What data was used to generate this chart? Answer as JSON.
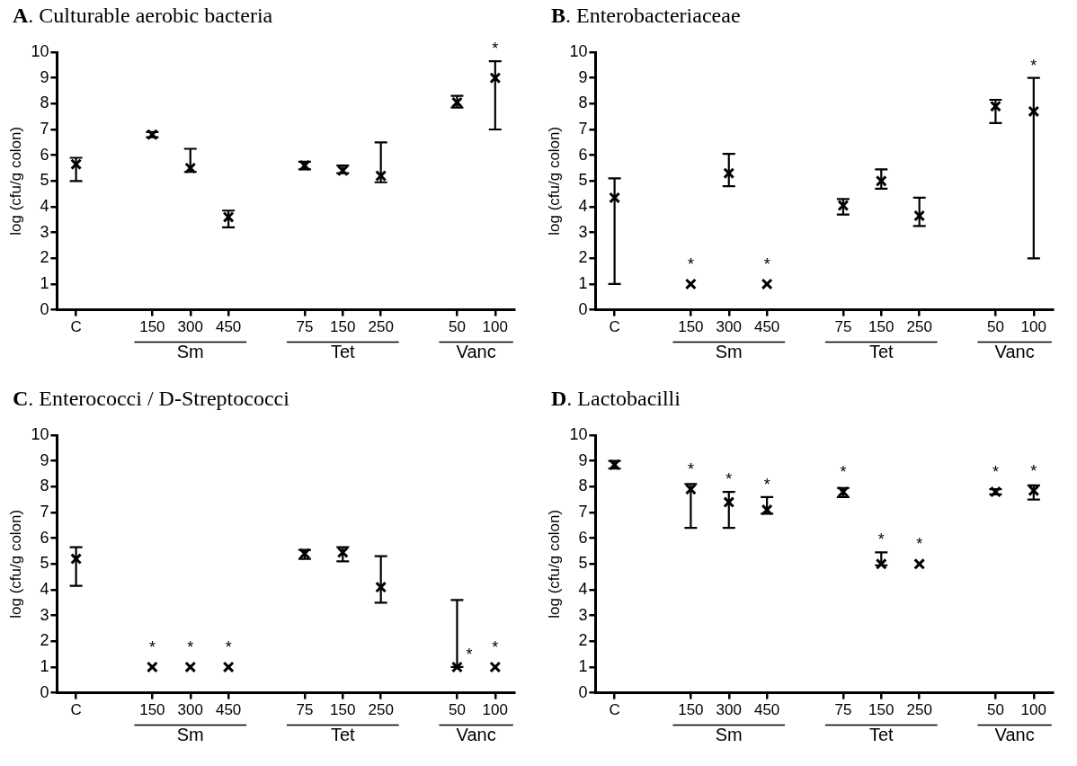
{
  "chart_data": [
    {
      "type": "scatter",
      "title": "A. Culturable aerobic bacteria",
      "ylabel": "log (cfu/g colon)",
      "categories": [
        "C",
        null,
        "150",
        "300",
        "450",
        null,
        "75",
        "150",
        "250",
        null,
        "50",
        "100"
      ],
      "color": "#000000",
      "marker": "cross",
      "values": [
        5.65,
        null,
        6.8,
        5.5,
        3.6,
        null,
        5.6,
        5.4,
        5.2,
        null,
        8.05,
        9.0
      ],
      "errors": [
        [
          5.0,
          5.9
        ],
        null,
        [
          6.7,
          6.9
        ],
        [
          5.35,
          6.25
        ],
        [
          3.2,
          3.85
        ],
        null,
        [
          5.45,
          5.75
        ],
        [
          5.3,
          5.6
        ],
        [
          4.95,
          6.5
        ],
        null,
        [
          7.85,
          8.3
        ],
        [
          7.0,
          9.65
        ]
      ],
      "value_labels": [
        null,
        null,
        null,
        null,
        null,
        null,
        null,
        null,
        null,
        null,
        null,
        "*"
      ],
      "annotations": [
        "Sm",
        "Tet",
        "Vanc"
      ],
      "ylim": [
        0,
        10
      ],
      "yticks": [
        0,
        1,
        2,
        3,
        4,
        5,
        6,
        7,
        8,
        9,
        10
      ],
      "grid": false,
      "legend": false
    },
    {
      "type": "scatter",
      "title": "B. Enterobacteriaceae",
      "ylabel": "log (cfu/g colon)",
      "categories": [
        "C",
        null,
        "150",
        "300",
        "450",
        null,
        "75",
        "150",
        "250",
        null,
        "50",
        "100"
      ],
      "color": "#000000",
      "marker": "cross",
      "values": [
        4.35,
        null,
        1.0,
        5.3,
        1.0,
        null,
        4.05,
        5.0,
        3.65,
        null,
        7.9,
        7.7
      ],
      "errors": [
        [
          1.0,
          5.1
        ],
        null,
        null,
        [
          4.8,
          6.05
        ],
        null,
        null,
        [
          3.7,
          4.3
        ],
        [
          4.7,
          5.45
        ],
        [
          3.25,
          4.35
        ],
        null,
        [
          7.25,
          8.15
        ],
        [
          2.0,
          9.0
        ]
      ],
      "value_labels": [
        null,
        null,
        "*",
        null,
        "*",
        null,
        null,
        null,
        null,
        null,
        null,
        "*"
      ],
      "annotations": [
        "Sm",
        "Tet",
        "Vanc"
      ],
      "ylim": [
        0,
        10
      ],
      "yticks": [
        0,
        1,
        2,
        3,
        4,
        5,
        6,
        7,
        8,
        9,
        10
      ],
      "grid": false,
      "legend": false
    },
    {
      "type": "scatter",
      "title": "C. Enterococci / D-Streptococci",
      "ylabel": "log (cfu/g colon)",
      "categories": [
        "C",
        null,
        "150",
        "300",
        "450",
        null,
        "75",
        "150",
        "250",
        null,
        "50",
        "100"
      ],
      "color": "#000000",
      "marker": "cross",
      "values": [
        5.2,
        null,
        1.0,
        1.0,
        1.0,
        null,
        5.4,
        5.45,
        4.1,
        null,
        1.0,
        1.0
      ],
      "errors": [
        [
          4.15,
          5.65
        ],
        null,
        null,
        null,
        null,
        null,
        [
          5.2,
          5.55
        ],
        [
          5.1,
          5.65
        ],
        [
          3.5,
          5.3
        ],
        null,
        [
          1.0,
          3.6
        ],
        null
      ],
      "value_labels": [
        null,
        null,
        "*",
        "*",
        "*",
        null,
        null,
        null,
        null,
        null,
        "*",
        "*"
      ],
      "annotations": [
        "Sm",
        "Tet",
        "Vanc"
      ],
      "ylim": [
        0,
        10
      ],
      "yticks": [
        0,
        1,
        2,
        3,
        4,
        5,
        6,
        7,
        8,
        9,
        10
      ],
      "grid": false,
      "legend": false
    },
    {
      "type": "scatter",
      "title": "D. Lactobacilli",
      "ylabel": "log (cfu/g colon)",
      "categories": [
        "C",
        null,
        "150",
        "300",
        "450",
        null,
        "75",
        "150",
        "250",
        null,
        "50",
        "100"
      ],
      "color": "#000000",
      "marker": "cross",
      "values": [
        8.85,
        null,
        7.9,
        7.4,
        7.1,
        null,
        7.8,
        5.0,
        5.0,
        null,
        7.8,
        7.85
      ],
      "errors": [
        [
          8.7,
          9.0
        ],
        null,
        [
          6.4,
          8.1
        ],
        [
          6.4,
          7.8
        ],
        [
          6.95,
          7.6
        ],
        null,
        [
          7.6,
          7.95
        ],
        [
          4.95,
          5.45
        ],
        null,
        null,
        [
          7.7,
          7.9
        ],
        [
          7.5,
          8.05
        ]
      ],
      "value_labels": [
        null,
        null,
        "*",
        "*",
        "*",
        null,
        "*",
        "*",
        "*",
        null,
        "*",
        "*"
      ],
      "annotations": [
        "Sm",
        "Tet",
        "Vanc"
      ],
      "ylim": [
        0,
        10
      ],
      "yticks": [
        0,
        1,
        2,
        3,
        4,
        5,
        6,
        7,
        8,
        9,
        10
      ],
      "grid": false,
      "legend": false
    }
  ]
}
